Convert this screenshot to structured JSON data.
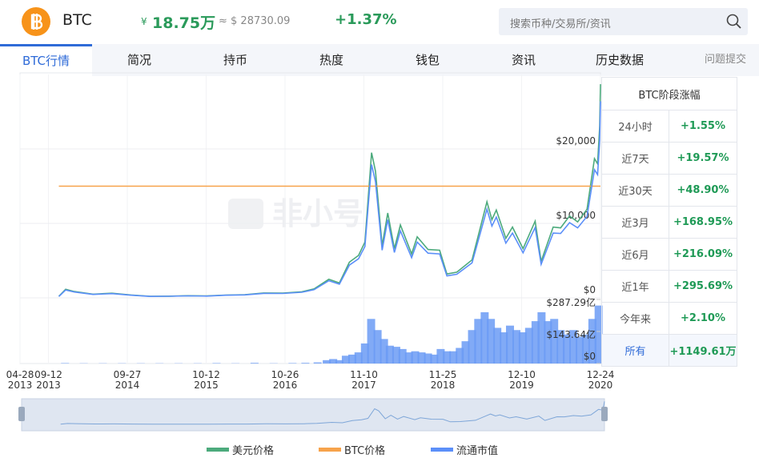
{
  "header": {
    "symbol": "BTC",
    "currency_sign": "¥",
    "price": "18.75万",
    "usd_price": "≈ $ 28730.09",
    "change": "+1.37%",
    "search_placeholder": "搜索币种/交易所/资讯"
  },
  "tabs": [
    "BTC行情",
    "简况",
    "持币",
    "热度",
    "钱包",
    "资讯",
    "历史数据",
    "问题提交"
  ],
  "watermark": "非小号",
  "table": {
    "title": "BTC阶段涨幅",
    "rows": [
      [
        "24小时",
        "+1.55%"
      ],
      [
        "近7天",
        "+19.57%"
      ],
      [
        "近30天",
        "+48.90%"
      ],
      [
        "近3月",
        "+168.95%"
      ],
      [
        "近6月",
        "+216.09%"
      ],
      [
        "近1年",
        "+295.69%"
      ],
      [
        "今年来",
        "+2.10%"
      ],
      [
        "所有",
        "+1149.61万"
      ]
    ]
  },
  "chart_data": [
    {
      "type": "line",
      "x": [
        "2013-11-01",
        "2013-12-04",
        "2014-01-15",
        "2014-04-15",
        "2014-07-15",
        "2014-10-15",
        "2015-01-15",
        "2015-04-15",
        "2015-07-15",
        "2015-10-15",
        "2016-01-15",
        "2016-04-15",
        "2016-07-15",
        "2016-10-15",
        "2017-01-15",
        "2017-03-15",
        "2017-05-25",
        "2017-07-15",
        "2017-09-01",
        "2017-10-15",
        "2017-11-15",
        "2017-12-17",
        "2018-01-05",
        "2018-02-06",
        "2018-03-05",
        "2018-04-06",
        "2018-05-05",
        "2018-06-28",
        "2018-07-25",
        "2018-09-15",
        "2018-11-10",
        "2018-12-15",
        "2019-02-01",
        "2019-04-15",
        "2019-06-26",
        "2019-07-20",
        "2019-08-10",
        "2019-09-25",
        "2019-10-27",
        "2019-12-17",
        "2020-02-13",
        "2020-03-13",
        "2020-05-10",
        "2020-06-15",
        "2020-07-28",
        "2020-09-05",
        "2020-10-20",
        "2020-11-25",
        "2020-12-10",
        "2020-12-20",
        "2020-12-24"
      ],
      "xlim": [
        "2013-04-28",
        "2020-12-24"
      ],
      "xticks": [
        {
          "value": "2013-04-28",
          "label": [
            "04-28",
            "2013"
          ]
        },
        {
          "value": "2013-09-12",
          "label": [
            "09-12",
            "2013"
          ]
        },
        {
          "value": "2014-09-27",
          "label": [
            "09-27",
            "2014"
          ]
        },
        {
          "value": "2015-10-12",
          "label": [
            "10-12",
            "2015"
          ]
        },
        {
          "value": "2016-10-26",
          "label": [
            "10-26",
            "2016"
          ]
        },
        {
          "value": "2017-11-10",
          "label": [
            "11-10",
            "2017"
          ]
        },
        {
          "value": "2018-11-25",
          "label": [
            "11-25",
            "2018"
          ]
        },
        {
          "value": "2019-12-10",
          "label": [
            "12-10",
            "2019"
          ]
        },
        {
          "value": "2020-12-24",
          "label": [
            "12-24",
            "2020"
          ]
        }
      ],
      "ylim": [
        0,
        30000
      ],
      "yticks": [
        {
          "value": 0,
          "label": "$0"
        },
        {
          "value": 10000,
          "label": "$10,000"
        },
        {
          "value": 20000,
          "label": "$20,000"
        }
      ],
      "y2lim": [
        0,
        2
      ],
      "grid": true,
      "series": [
        {
          "name": "美元价格",
          "color": "#4caa7c",
          "values": [
            200,
            1150,
            850,
            500,
            620,
            390,
            210,
            230,
            290,
            260,
            380,
            430,
            660,
            640,
            820,
            1200,
            2500,
            2000,
            4800,
            5700,
            7500,
            19500,
            17000,
            7000,
            11400,
            6600,
            9800,
            5900,
            8200,
            6500,
            6400,
            3200,
            3450,
            5100,
            12900,
            10500,
            11800,
            8000,
            9500,
            6600,
            10300,
            4900,
            9500,
            9400,
            11000,
            10200,
            11900,
            18700,
            18000,
            23000,
            28700
          ]
        },
        {
          "name": "BTC价格",
          "color": "#f7a34b",
          "axis": "y2",
          "values": [
            1,
            1,
            1,
            1,
            1,
            1,
            1,
            1,
            1,
            1,
            1,
            1,
            1,
            1,
            1,
            1,
            1,
            1,
            1,
            1,
            1,
            1,
            1,
            1,
            1,
            1,
            1,
            1,
            1,
            1,
            1,
            1,
            1,
            1,
            1,
            1,
            1,
            1,
            1,
            1,
            1,
            1,
            1,
            1,
            1,
            1,
            1,
            1,
            1,
            1,
            1
          ]
        },
        {
          "name": "流通市值",
          "color": "#5b8ff9",
          "values": [
            180,
            1050,
            780,
            460,
            570,
            360,
            190,
            210,
            265,
            240,
            350,
            395,
            605,
            590,
            750,
            1100,
            2300,
            1840,
            4400,
            5250,
            6900,
            17900,
            15600,
            6400,
            10500,
            6100,
            9000,
            5400,
            7500,
            6000,
            5900,
            2950,
            3170,
            4700,
            11900,
            9650,
            10850,
            7350,
            8700,
            6050,
            9450,
            4500,
            8700,
            8650,
            10100,
            9400,
            10950,
            17200,
            16550,
            21150,
            26400
          ]
        }
      ]
    },
    {
      "type": "bar",
      "color": "#6b9bf5",
      "x": [
        "2013-12-01",
        "2014-03-01",
        "2014-06-01",
        "2014-09-01",
        "2014-12-01",
        "2015-03-01",
        "2015-06-01",
        "2015-09-01",
        "2015-12-01",
        "2016-03-01",
        "2016-06-01",
        "2016-09-01",
        "2016-12-01",
        "2017-02-01",
        "2017-04-01",
        "2017-05-15",
        "2017-06-15",
        "2017-07-15",
        "2017-08-15",
        "2017-09-15",
        "2017-10-15",
        "2017-11-15",
        "2017-12-15",
        "2018-01-15",
        "2018-02-15",
        "2018-03-15",
        "2018-04-15",
        "2018-05-15",
        "2018-06-15",
        "2018-07-15",
        "2018-08-15",
        "2018-09-15",
        "2018-10-15",
        "2018-11-15",
        "2018-12-15",
        "2019-01-15",
        "2019-02-15",
        "2019-03-15",
        "2019-04-15",
        "2019-05-15",
        "2019-06-15",
        "2019-07-15",
        "2019-08-15",
        "2019-09-15",
        "2019-10-15",
        "2019-11-15",
        "2019-12-15",
        "2020-01-15",
        "2020-02-15",
        "2020-03-15",
        "2020-04-15",
        "2020-05-15",
        "2020-06-15",
        "2020-07-15",
        "2020-08-15",
        "2020-09-15",
        "2020-10-15",
        "2020-11-15",
        "2020-12-15"
      ],
      "values": [
        2,
        1,
        1,
        1,
        1,
        1,
        1,
        1,
        2,
        1,
        3,
        1,
        2,
        3,
        5,
        15,
        20,
        15,
        35,
        40,
        50,
        90,
        200,
        150,
        110,
        80,
        75,
        65,
        50,
        55,
        50,
        45,
        40,
        65,
        55,
        55,
        70,
        100,
        150,
        200,
        230,
        200,
        160,
        140,
        170,
        150,
        140,
        160,
        190,
        230,
        190,
        200,
        150,
        130,
        150,
        120,
        130,
        200,
        260
      ],
      "xlim": [
        "2013-04-28",
        "2020-12-24"
      ],
      "ylim": [
        0,
        287.29
      ],
      "yticks": [
        {
          "value": 0,
          "label": "$0"
        },
        {
          "value": 143.64,
          "label": "$143.64亿"
        },
        {
          "value": 287.29,
          "label": "$287.29亿"
        }
      ]
    }
  ]
}
